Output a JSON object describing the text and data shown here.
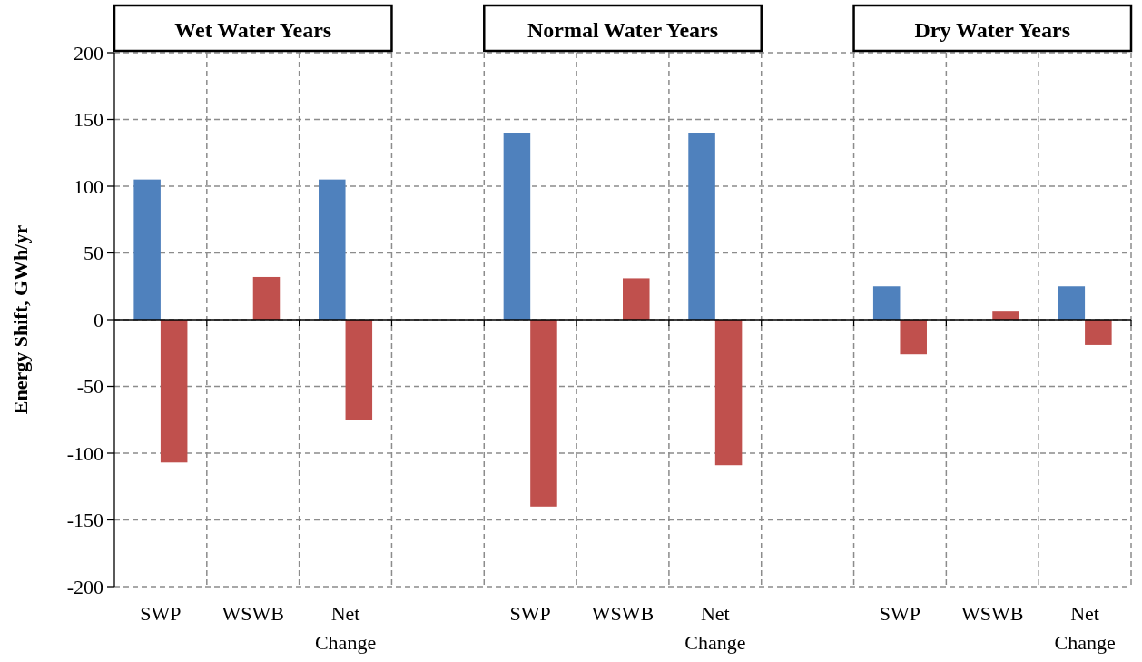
{
  "chart_data": {
    "type": "bar",
    "ylabel": "Energy Shift, GWh/yr",
    "categories": [
      "SWP",
      "WSWB",
      "Net Change",
      null,
      "SWP",
      "WSWB",
      "Net Change",
      null,
      "SWP",
      "WSWB",
      "Net Change"
    ],
    "series": [
      {
        "color": "#4f81bd",
        "values": [
          105,
          null,
          105,
          null,
          140,
          null,
          140,
          null,
          25,
          null,
          25
        ]
      },
      {
        "color": "#c0504d",
        "values": [
          -107,
          32,
          -75,
          null,
          -140,
          31,
          -109,
          null,
          -26,
          6,
          -19
        ]
      }
    ],
    "ylim": [
      -200,
      200
    ],
    "yticks": [
      -200,
      -150,
      -100,
      -50,
      0,
      50,
      100,
      150,
      200
    ],
    "grid": true,
    "annotations": [
      "Wet Water Years",
      "Normal Water Years",
      "Dry Water Years"
    ]
  }
}
